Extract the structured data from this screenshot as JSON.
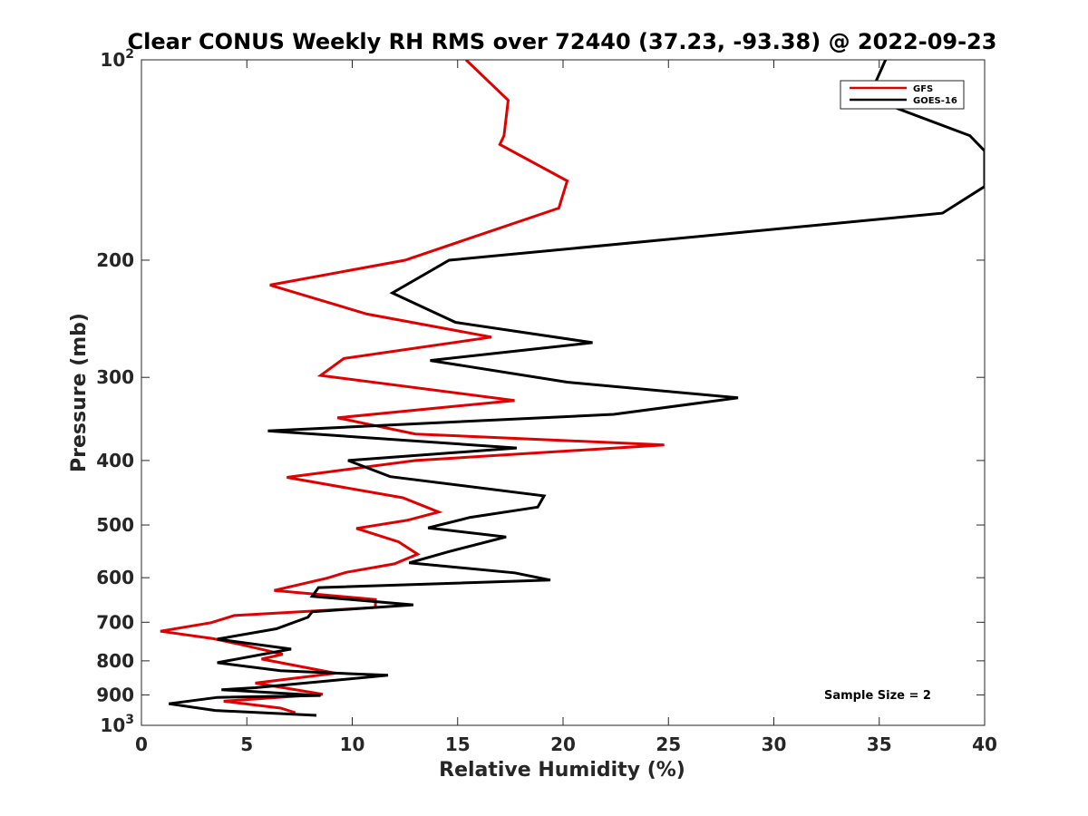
{
  "chart_data": {
    "type": "line",
    "title": "Clear CONUS Weekly RH RMS over 72440 (37.23, -93.38) @ 2022-09-23",
    "xlabel": "Relative Humidity (%)",
    "ylabel": "Pressure (mb)",
    "xlim": [
      0,
      40
    ],
    "ylim": [
      100,
      1000
    ],
    "yscale": "log",
    "y_reversed": true,
    "x_ticks": [
      "0",
      "5",
      "10",
      "15",
      "20",
      "25",
      "30",
      "35",
      "40"
    ],
    "y_ticks": [
      {
        "value": 100,
        "base": "10",
        "exp": "2"
      },
      {
        "value": 200,
        "label": "200"
      },
      {
        "value": 300,
        "label": "300"
      },
      {
        "value": 400,
        "label": "400"
      },
      {
        "value": 500,
        "label": "500"
      },
      {
        "value": 600,
        "label": "600"
      },
      {
        "value": 700,
        "label": "700"
      },
      {
        "value": 800,
        "label": "800"
      },
      {
        "value": 900,
        "label": "900"
      },
      {
        "value": 1000,
        "base": "10",
        "exp": "3"
      }
    ],
    "grid": false,
    "legend_position": "top-right",
    "annotation": "Sample Size = 2",
    "series": [
      {
        "name": "GFS",
        "color": "#e00000",
        "points": [
          [
            15.4,
            100
          ],
          [
            17.4,
            115
          ],
          [
            17.2,
            130
          ],
          [
            17.0,
            134
          ],
          [
            20.2,
            152
          ],
          [
            19.8,
            167
          ],
          [
            12.5,
            200
          ],
          [
            6.1,
            218
          ],
          [
            10.7,
            241
          ],
          [
            16.6,
            261
          ],
          [
            9.6,
            281
          ],
          [
            8.5,
            298
          ],
          [
            17.7,
            325
          ],
          [
            9.3,
            345
          ],
          [
            13.0,
            365
          ],
          [
            24.8,
            379
          ],
          [
            13.0,
            400
          ],
          [
            6.9,
            424
          ],
          [
            12.4,
            455
          ],
          [
            14.1,
            478
          ],
          [
            12.6,
            492
          ],
          [
            10.2,
            506
          ],
          [
            12.2,
            530
          ],
          [
            13.1,
            553
          ],
          [
            12.0,
            572
          ],
          [
            9.7,
            589
          ],
          [
            8.8,
            601
          ],
          [
            6.3,
            627
          ],
          [
            11.1,
            647
          ],
          [
            11.1,
            665
          ],
          [
            4.4,
            684
          ],
          [
            3.3,
            701
          ],
          [
            0.9,
            722
          ],
          [
            3.4,
            741
          ],
          [
            4.7,
            756
          ],
          [
            6.7,
            782
          ],
          [
            5.7,
            795
          ],
          [
            9.2,
            835
          ],
          [
            5.4,
            864
          ],
          [
            8.6,
            898
          ],
          [
            3.9,
            920
          ],
          [
            6.6,
            942
          ],
          [
            7.3,
            957
          ]
        ]
      },
      {
        "name": "GOES-16",
        "color": "#000000",
        "points": [
          [
            35.3,
            100
          ],
          [
            34.5,
            114
          ],
          [
            39.3,
            130
          ],
          [
            40.0,
            137
          ],
          [
            40.0,
            155
          ],
          [
            38.0,
            170
          ],
          [
            14.6,
            200
          ],
          [
            11.9,
            224
          ],
          [
            14.9,
            248
          ],
          [
            21.4,
            266
          ],
          [
            13.7,
            283
          ],
          [
            20.2,
            305
          ],
          [
            28.3,
            322
          ],
          [
            22.4,
            341
          ],
          [
            6.0,
            361
          ],
          [
            17.8,
            383
          ],
          [
            9.8,
            400
          ],
          [
            11.8,
            423
          ],
          [
            19.1,
            452
          ],
          [
            18.8,
            470
          ],
          [
            15.6,
            487
          ],
          [
            13.6,
            505
          ],
          [
            17.3,
            521
          ],
          [
            14.6,
            548
          ],
          [
            12.7,
            570
          ],
          [
            17.7,
            590
          ],
          [
            19.4,
            605
          ],
          [
            8.4,
            621
          ],
          [
            8.1,
            640
          ],
          [
            12.9,
            659
          ],
          [
            8.1,
            675
          ],
          [
            7.9,
            688
          ],
          [
            6.4,
            716
          ],
          [
            3.6,
            742
          ],
          [
            7.1,
            768
          ],
          [
            3.6,
            805
          ],
          [
            6.6,
            828
          ],
          [
            11.7,
            841
          ],
          [
            5.4,
            878
          ],
          [
            3.8,
            884
          ],
          [
            8.5,
            902
          ],
          [
            3.6,
            908
          ],
          [
            1.3,
            928
          ],
          [
            3.5,
            950
          ],
          [
            8.3,
            966
          ]
        ]
      }
    ]
  }
}
